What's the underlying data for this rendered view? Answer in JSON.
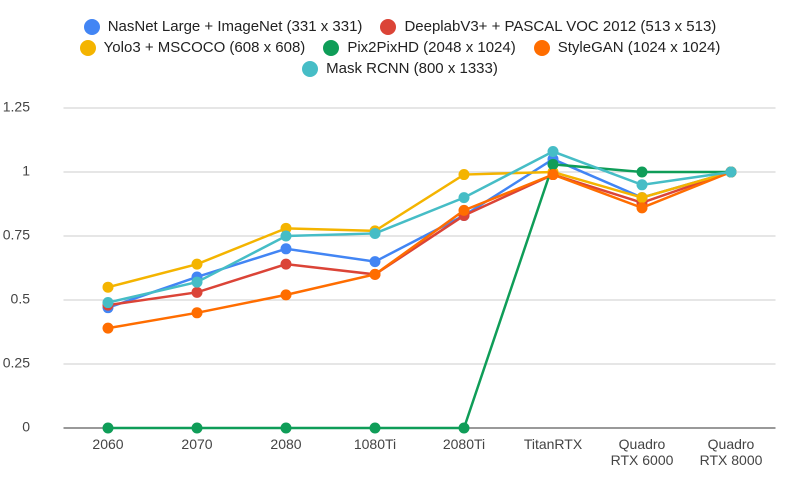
{
  "chart_data": {
    "type": "line",
    "categories": [
      "2060",
      "2070",
      "2080",
      "1080Ti",
      "2080Ti",
      "TitanRTX",
      "Quadro RTX 6000",
      "Quadro RTX 8000"
    ],
    "series": [
      {
        "name": "NasNet Large + ImageNet (331 x 331)",
        "color": "#4285f4",
        "values": [
          0.47,
          0.59,
          0.7,
          0.65,
          0.83,
          1.05,
          0.9,
          1
        ]
      },
      {
        "name": "DeeplabV3+ + PASCAL VOC 2012 (513 x 513)",
        "color": "#db4437",
        "values": [
          0.48,
          0.53,
          0.64,
          0.6,
          0.83,
          0.99,
          0.88,
          1
        ]
      },
      {
        "name": "Yolo3 + MSCOCO (608 x 608)",
        "color": "#f4b400",
        "values": [
          0.55,
          0.64,
          0.78,
          0.77,
          0.99,
          1.0,
          0.9,
          1
        ]
      },
      {
        "name": "Pix2PixHD (2048 x 1024)",
        "color": "#0f9d58",
        "values": [
          0,
          0,
          0,
          0,
          0,
          1.03,
          1.0,
          1
        ]
      },
      {
        "name": "StyleGAN (1024 x 1024)",
        "color": "#ff6d00",
        "values": [
          0.39,
          0.45,
          0.52,
          0.6,
          0.85,
          0.99,
          0.86,
          1
        ]
      },
      {
        "name": "Mask RCNN (800 x 1333)",
        "color": "#46bdc6",
        "values": [
          0.49,
          0.57,
          0.75,
          0.76,
          0.9,
          1.08,
          0.95,
          1
        ]
      }
    ],
    "ylim": [
      0,
      1.25
    ],
    "yticks": [
      0,
      0.25,
      0.5,
      0.75,
      1,
      1.25
    ],
    "grid": true
  }
}
